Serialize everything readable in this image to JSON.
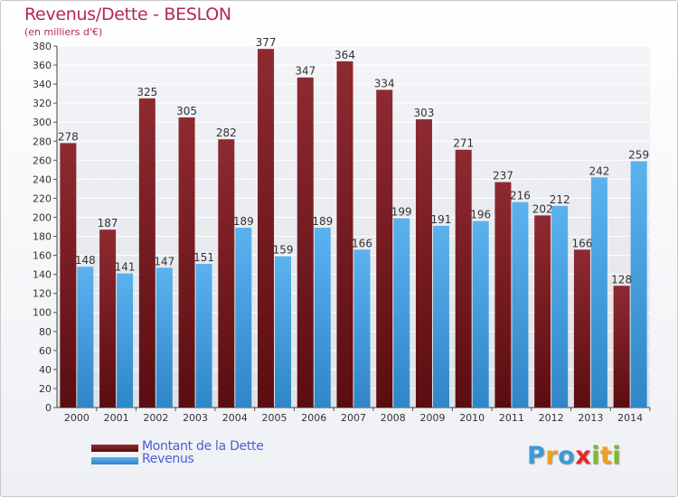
{
  "title": "Revenus/Dette - BESLON",
  "subtitle": "(en milliers d'€)",
  "legend": {
    "dette_label": "Montant de la Dette",
    "revenus_label": "Revenus"
  },
  "logo": {
    "text": "Proxiti",
    "letters": [
      {
        "char": "P",
        "color": "#3a9bd6"
      },
      {
        "char": "r",
        "color": "#f0a020"
      },
      {
        "char": "o",
        "color": "#3a9bd6"
      },
      {
        "char": "x",
        "color": "#e8272a"
      },
      {
        "char": "i",
        "color": "#7cba2c"
      },
      {
        "char": "t",
        "color": "#f0a020"
      },
      {
        "char": "i",
        "color": "#7cba2c"
      }
    ]
  },
  "colors": {
    "dette": "#7c1a1f",
    "revenus": "#4aa3e3",
    "title": "#b5255a",
    "legend_text": "#4b5fd8"
  },
  "chart_data": {
    "type": "bar",
    "categories": [
      "2000",
      "2001",
      "2002",
      "2003",
      "2004",
      "2005",
      "2006",
      "2007",
      "2008",
      "2009",
      "2010",
      "2011",
      "2012",
      "2013",
      "2014"
    ],
    "series": [
      {
        "name": "Montant de la Dette",
        "values": [
          278,
          187,
          325,
          305,
          282,
          377,
          347,
          364,
          334,
          303,
          271,
          237,
          202,
          166,
          128
        ]
      },
      {
        "name": "Revenus",
        "values": [
          148,
          141,
          147,
          151,
          189,
          159,
          189,
          166,
          199,
          191,
          196,
          216,
          212,
          242,
          259
        ]
      }
    ],
    "title": "Revenus/Dette - BESLON",
    "ylabel": "",
    "xlabel": "",
    "ylim": [
      0,
      380
    ],
    "yticks": [
      0,
      20,
      40,
      60,
      80,
      100,
      120,
      140,
      160,
      180,
      200,
      220,
      240,
      260,
      280,
      300,
      320,
      340,
      360,
      380
    ],
    "grid": true,
    "legend_position": "bottom-left"
  }
}
